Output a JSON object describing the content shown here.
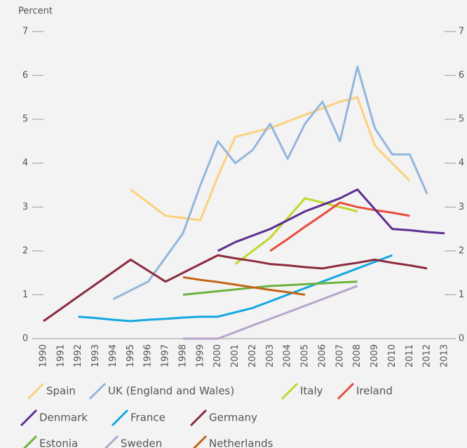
{
  "chart_data": {
    "type": "line",
    "y_label": "Percent",
    "categories": [
      "1990",
      "1991",
      "1992",
      "1993",
      "1994",
      "1995",
      "1996",
      "1997",
      "1998",
      "1999",
      "2000",
      "2001",
      "2002",
      "2003",
      "2004",
      "2005",
      "2006",
      "2007",
      "2008",
      "2009",
      "2010",
      "2011",
      "2012",
      "2013"
    ],
    "ylim": [
      0,
      7
    ],
    "yticks": [
      0,
      1,
      2,
      3,
      4,
      5,
      6,
      7
    ],
    "series": [
      {
        "name": "Spain",
        "color": "#fcd17d",
        "values": [
          null,
          null,
          null,
          null,
          null,
          3.4,
          3.1,
          2.8,
          2.75,
          2.7,
          3.7,
          4.6,
          4.7,
          4.8,
          4.95,
          5.1,
          5.25,
          5.4,
          5.5,
          4.4,
          4.0,
          3.6,
          null,
          null
        ]
      },
      {
        "name": "UK (England and Wales)",
        "color": "#93b6dd",
        "values": [
          null,
          null,
          null,
          null,
          0.9,
          1.1,
          1.3,
          1.85,
          2.4,
          3.5,
          4.5,
          4.0,
          4.3,
          4.9,
          4.1,
          4.9,
          5.4,
          4.5,
          6.2,
          4.8,
          4.2,
          4.2,
          3.3,
          null
        ]
      },
      {
        "name": "Italy",
        "color": "#c3d62b",
        "values": [
          null,
          null,
          null,
          null,
          null,
          null,
          null,
          null,
          null,
          null,
          null,
          1.7,
          2.0,
          2.3,
          2.75,
          3.2,
          3.1,
          3.0,
          2.9,
          null,
          null,
          null,
          null,
          null
        ]
      },
      {
        "name": "Ireland",
        "color": "#e94b3c",
        "values": [
          null,
          null,
          null,
          null,
          null,
          null,
          null,
          null,
          null,
          null,
          null,
          null,
          null,
          2.0,
          2.27,
          2.55,
          2.82,
          3.1,
          3.0,
          2.93,
          2.87,
          2.8,
          null,
          null
        ]
      },
      {
        "name": "Denmark",
        "color": "#5c2d91",
        "values": [
          null,
          null,
          null,
          null,
          null,
          null,
          null,
          null,
          null,
          null,
          2.0,
          2.2,
          2.35,
          2.5,
          2.7,
          2.9,
          3.05,
          3.2,
          3.4,
          2.95,
          2.5,
          2.47,
          2.43,
          2.4
        ]
      },
      {
        "name": "France",
        "color": "#12a8e0",
        "values": [
          null,
          null,
          0.5,
          0.47,
          0.43,
          0.4,
          0.43,
          0.45,
          0.48,
          0.5,
          0.5,
          0.6,
          0.7,
          0.85,
          1.0,
          1.15,
          1.3,
          1.45,
          1.6,
          1.75,
          1.9,
          null,
          null,
          null
        ]
      },
      {
        "name": "Germany",
        "color": "#8a2b3e",
        "values": [
          0.4,
          0.68,
          0.96,
          1.24,
          1.52,
          1.8,
          1.55,
          1.3,
          1.5,
          1.7,
          1.9,
          1.83,
          1.77,
          1.7,
          1.67,
          1.63,
          1.6,
          1.67,
          1.73,
          1.8,
          1.73,
          1.67,
          1.6,
          null
        ]
      },
      {
        "name": "Estonia",
        "color": "#6cb33f",
        "values": [
          null,
          null,
          null,
          null,
          null,
          null,
          null,
          null,
          1.0,
          1.04,
          1.08,
          1.12,
          1.16,
          1.2,
          1.22,
          1.24,
          1.26,
          1.28,
          1.3,
          null,
          null,
          null,
          null,
          null
        ]
      },
      {
        "name": "Sweden",
        "color": "#b7a5ca",
        "values": [
          null,
          null,
          null,
          null,
          null,
          null,
          null,
          null,
          0,
          0,
          0,
          0.15,
          0.3,
          0.45,
          0.6,
          0.75,
          0.9,
          1.05,
          1.2,
          null,
          null,
          null,
          null,
          null
        ]
      },
      {
        "name": "Netherlands",
        "color": "#c06418",
        "values": [
          null,
          null,
          null,
          null,
          null,
          null,
          null,
          null,
          1.4,
          1.34,
          1.29,
          1.23,
          1.17,
          1.11,
          1.06,
          1.0,
          null,
          null,
          null,
          null,
          null,
          null,
          null,
          null
        ]
      }
    ]
  }
}
